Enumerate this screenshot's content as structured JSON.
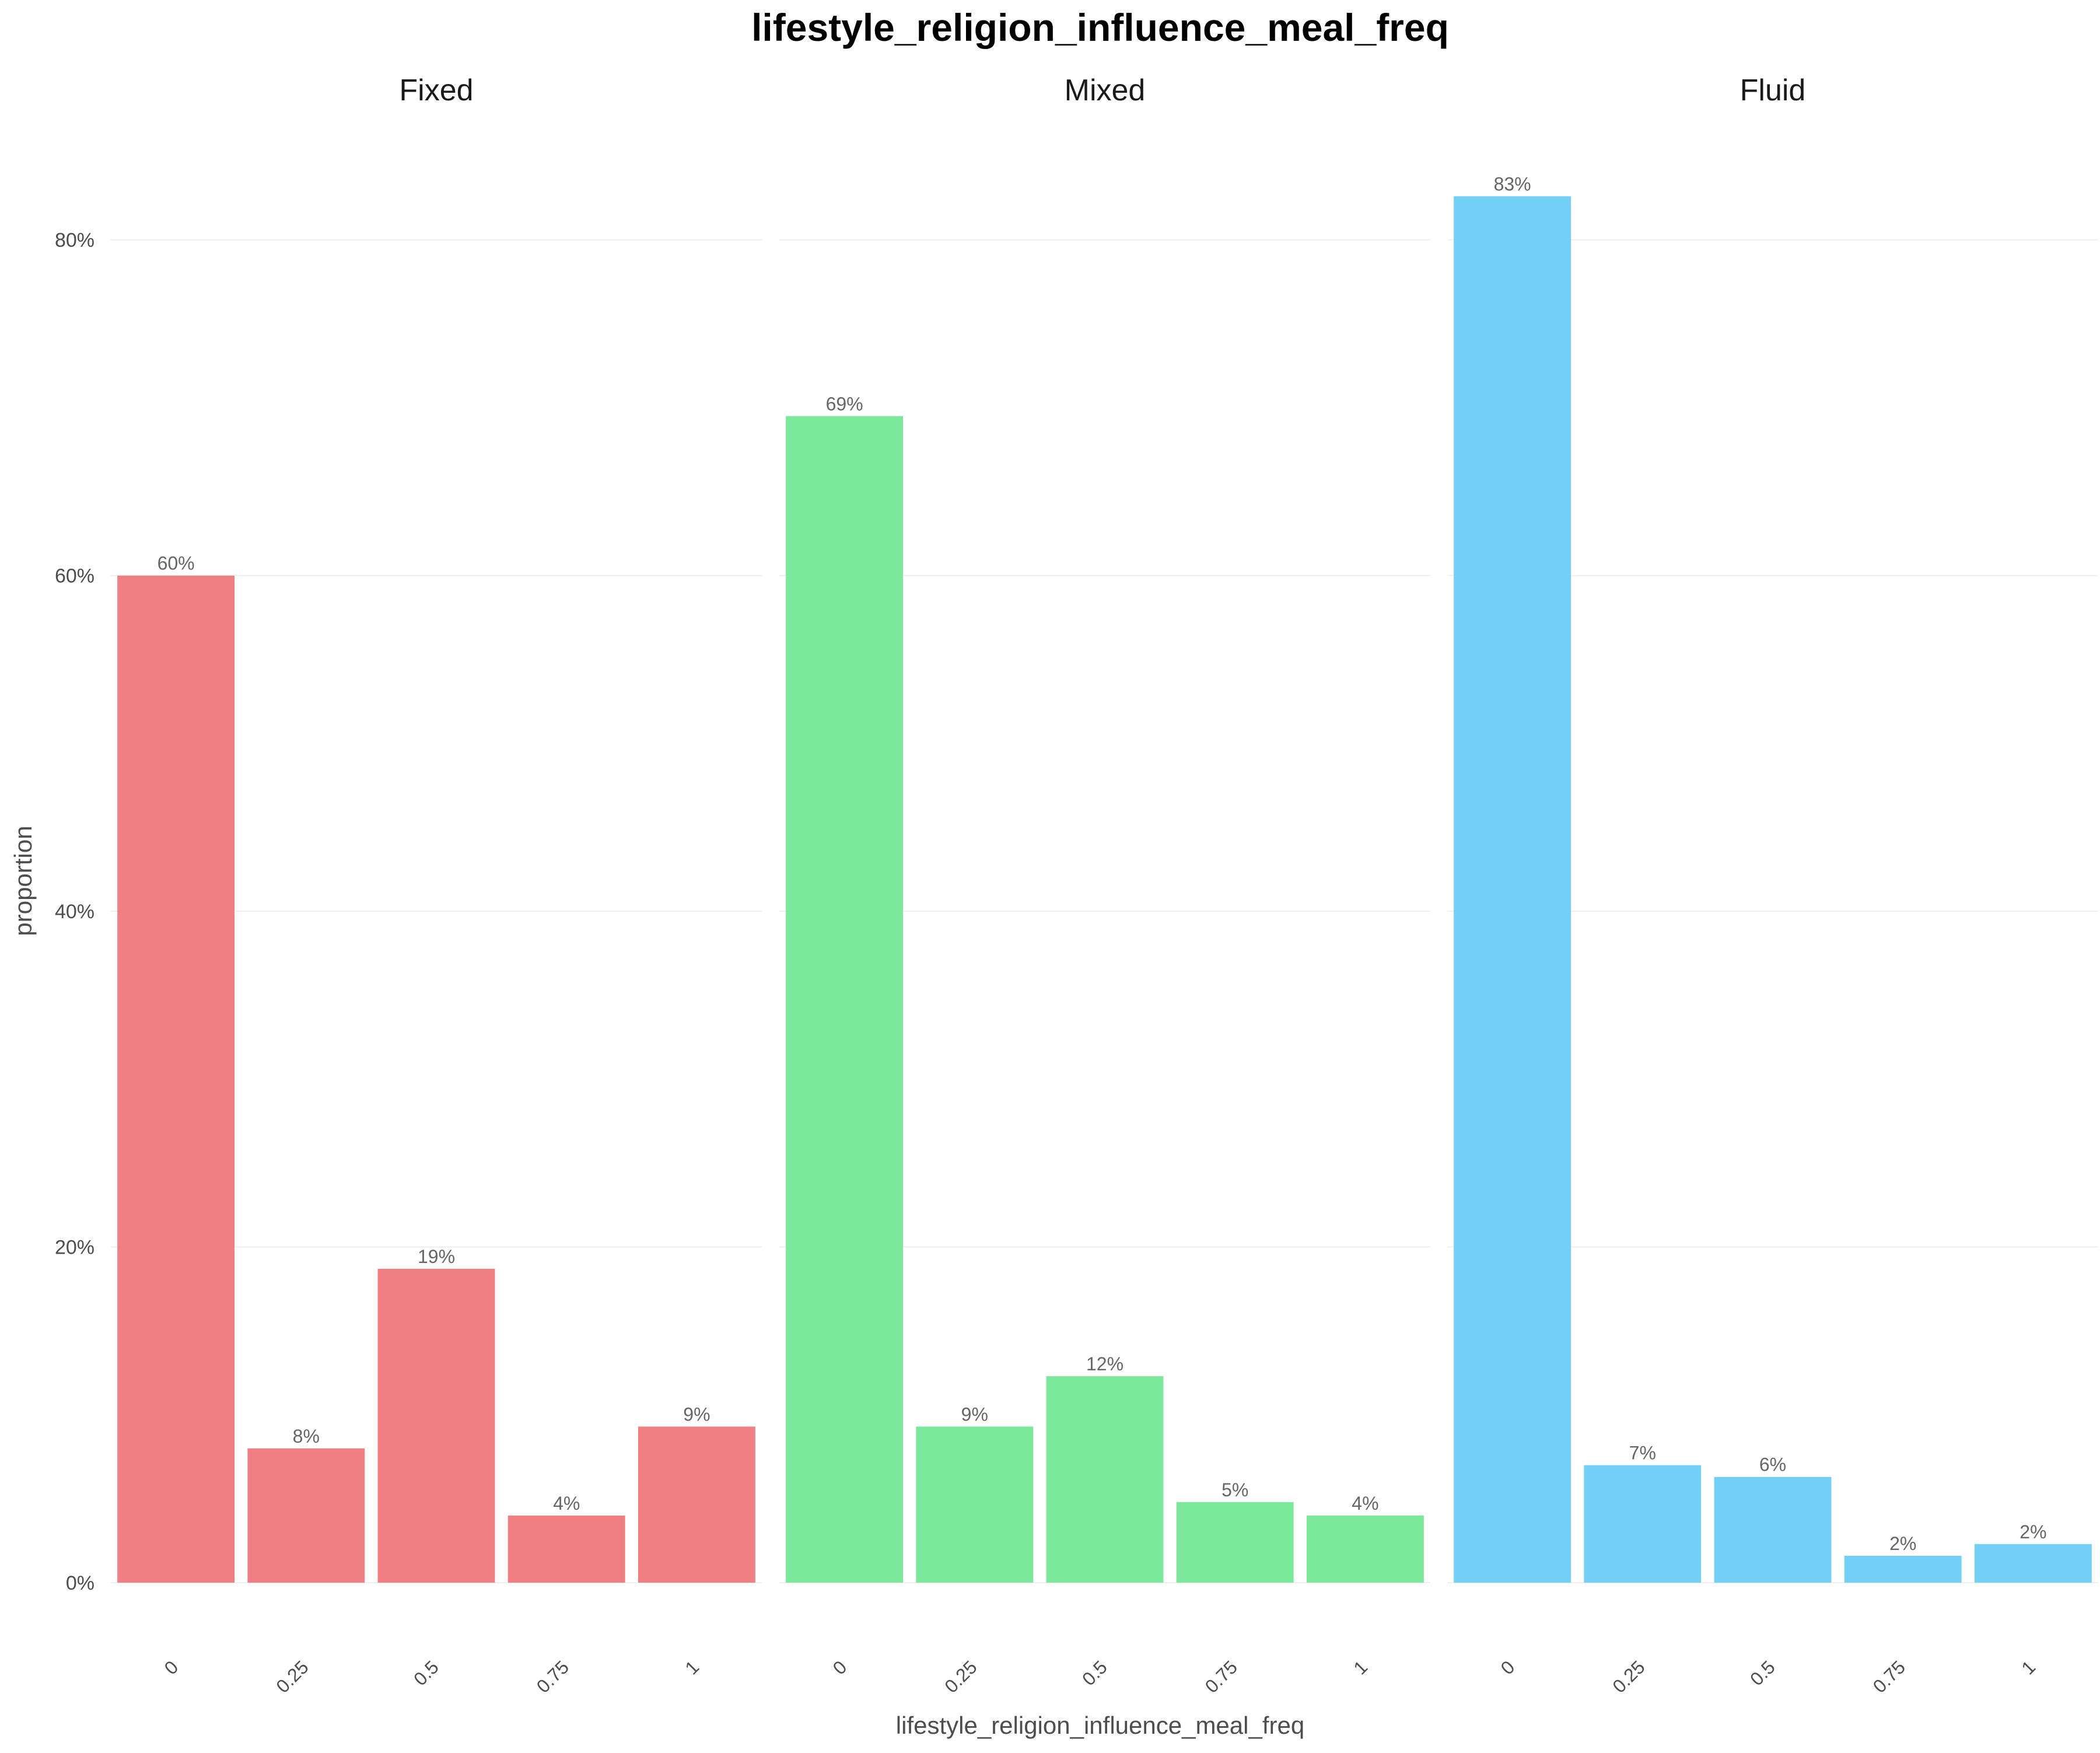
{
  "chart_data": {
    "type": "bar",
    "title": "lifestyle_religion_influence_meal_freq",
    "xlabel": "lifestyle_religion_influence_meal_freq",
    "ylabel": "proportion",
    "ylim": [
      0,
      0.855
    ],
    "y_ticks": [
      0,
      0.2,
      0.4,
      0.6,
      0.8
    ],
    "y_tick_labels": [
      "0%",
      "20%",
      "40%",
      "60%",
      "80%"
    ],
    "categories": [
      "0",
      "0.25",
      "0.5",
      "0.75",
      "1"
    ],
    "grid": "horizontal major",
    "legend": "none",
    "facets": [
      {
        "name": "Fixed",
        "color": "#F07F83",
        "values": [
          0.6,
          0.08,
          0.187,
          0.04,
          0.093
        ],
        "labels": [
          "60%",
          "8%",
          "19%",
          "4%",
          "9%"
        ]
      },
      {
        "name": "Mixed",
        "color": "#7BE89B",
        "values": [
          0.695,
          0.093,
          0.123,
          0.048,
          0.04
        ],
        "labels": [
          "69%",
          "9%",
          "12%",
          "5%",
          "4%"
        ]
      },
      {
        "name": "Fluid",
        "color": "#72D0F6",
        "values": [
          0.826,
          0.07,
          0.063,
          0.016,
          0.023
        ],
        "labels": [
          "83%",
          "7%",
          "6%",
          "2%",
          "2%"
        ]
      }
    ]
  }
}
